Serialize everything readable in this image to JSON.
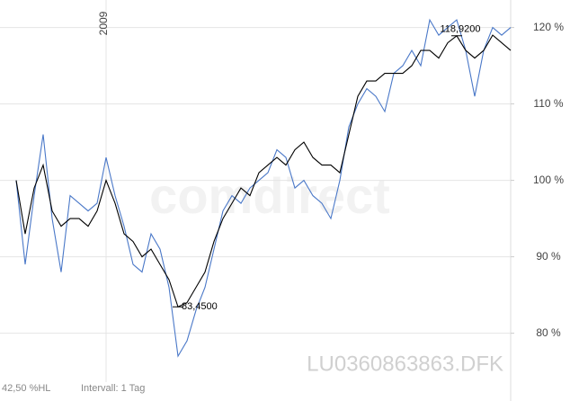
{
  "chart_data": {
    "type": "line",
    "categories": [
      null,
      null,
      null,
      null,
      null,
      null,
      null,
      null,
      null,
      null,
      "2009",
      null,
      null,
      null,
      null,
      null,
      null,
      null,
      null,
      null,
      null,
      null,
      null,
      null,
      null,
      null,
      null,
      null,
      null,
      null,
      null,
      null,
      null,
      null,
      null,
      null,
      null,
      null,
      null,
      null,
      null,
      null,
      null,
      null,
      null,
      null,
      null,
      null,
      null,
      null,
      null,
      null,
      null,
      null,
      null,
      null
    ],
    "series": [
      {
        "name": "LU0360863863.DFK",
        "color": "#000000",
        "values": [
          100,
          93,
          99,
          102,
          96,
          94,
          95,
          95,
          94,
          96,
          100,
          97,
          93,
          92,
          90,
          91,
          89,
          87,
          83.45,
          84,
          86,
          88,
          92,
          95,
          97,
          99,
          98,
          101,
          102,
          103,
          102,
          104,
          105,
          103,
          102,
          102,
          101,
          106,
          111,
          113,
          113,
          114,
          114,
          114,
          115,
          117,
          117,
          116,
          118,
          118.92,
          117,
          116,
          117,
          119,
          118,
          117
        ]
      },
      {
        "name": "comdirect",
        "color": "#4a78c8",
        "values": [
          100,
          89,
          98,
          106,
          95,
          88,
          98,
          97,
          96,
          97,
          103,
          98,
          94,
          89,
          88,
          93,
          91,
          86,
          77,
          79,
          83,
          86,
          91,
          96,
          98,
          97,
          99,
          100,
          101,
          104,
          103,
          99,
          100,
          98,
          97,
          95,
          100,
          107,
          110,
          112,
          111,
          109,
          114,
          115,
          117,
          115,
          121,
          119,
          120,
          121,
          117,
          111,
          117,
          120,
          119,
          120
        ]
      }
    ],
    "annotations": [
      {
        "label": "118,9200",
        "value": 118.92
      },
      {
        "label": "83,4500",
        "value": 83.45
      }
    ],
    "ylim": [
      73.6,
      123.6
    ],
    "yticks": [
      {
        "value": 80,
        "label": "80 %"
      },
      {
        "value": 90,
        "label": "90 %"
      },
      {
        "value": 100,
        "label": "100 %"
      },
      {
        "value": 110,
        "label": "110 %"
      },
      {
        "value": 120,
        "label": "120 %"
      }
    ],
    "grid": true,
    "footer": {
      "range": "42,50 %HL",
      "interval": "Intervall: 1 Tag",
      "symbol": "LU0360863863.DFK"
    }
  }
}
